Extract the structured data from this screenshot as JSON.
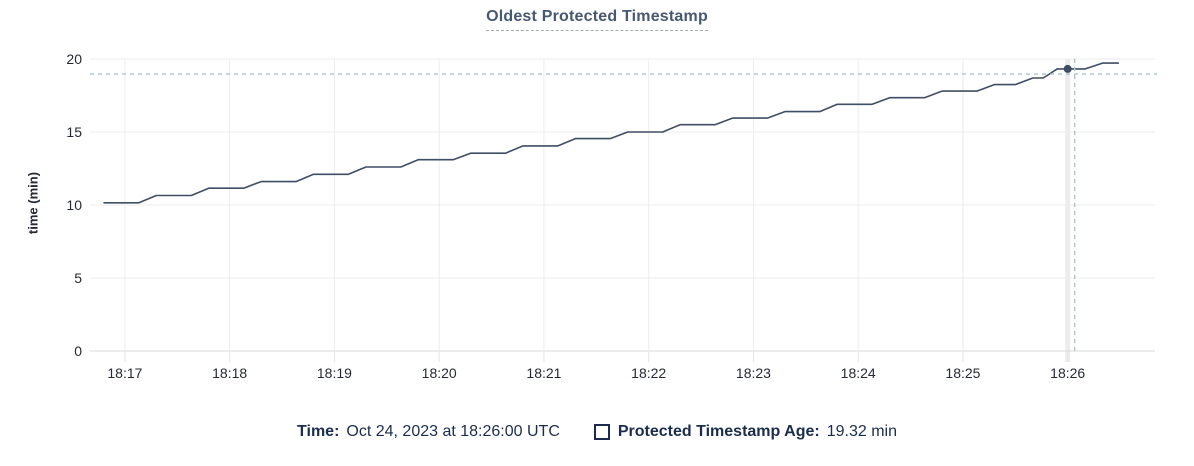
{
  "title": "Oldest Protected Timestamp",
  "y_axis_title": "time (min)",
  "legend": {
    "time_label": "Time:",
    "time_value": "Oct 24, 2023 at 18:26:00 UTC",
    "series_label": "Protected Timestamp Age:",
    "series_value": "19.32 min"
  },
  "colors": {
    "title": "#475872",
    "line": "#3f4e66",
    "dot": "#3f4e66",
    "crosshair": "#a9c4d2",
    "grid": "#ececec",
    "zero_line": "#d8d8d8",
    "tick_extension": "#e4e4e4",
    "highlight_band": "#ededed",
    "axis_label": "#242a35",
    "legend_text": "#1b2d4e",
    "background": "#ffffff"
  },
  "chart_data": {
    "type": "line",
    "title": "Oldest Protected Timestamp",
    "xlabel": "",
    "ylabel": "time (min)",
    "ylim": [
      0,
      20
    ],
    "y_ticks": [
      0,
      5,
      10,
      15,
      20
    ],
    "x_domain": [
      "18:16:40",
      "18:26:50"
    ],
    "x_ticks": [
      "18:17",
      "18:18",
      "18:19",
      "18:20",
      "18:21",
      "18:22",
      "18:23",
      "18:24",
      "18:25",
      "18:26"
    ],
    "grid": true,
    "legend_position": "bottom",
    "series": [
      {
        "name": "Protected Timestamp Age",
        "unit": "min",
        "points": [
          [
            "18:16:48",
            10.15
          ],
          [
            "18:17:08",
            10.15
          ],
          [
            "18:17:18",
            10.65
          ],
          [
            "18:17:38",
            10.65
          ],
          [
            "18:17:48",
            11.15
          ],
          [
            "18:18:08",
            11.15
          ],
          [
            "18:18:18",
            11.6
          ],
          [
            "18:18:38",
            11.6
          ],
          [
            "18:18:48",
            12.1
          ],
          [
            "18:19:08",
            12.1
          ],
          [
            "18:19:18",
            12.6
          ],
          [
            "18:19:38",
            12.6
          ],
          [
            "18:19:48",
            13.1
          ],
          [
            "18:20:08",
            13.1
          ],
          [
            "18:20:18",
            13.55
          ],
          [
            "18:20:38",
            13.55
          ],
          [
            "18:20:48",
            14.05
          ],
          [
            "18:21:08",
            14.05
          ],
          [
            "18:21:18",
            14.55
          ],
          [
            "18:21:38",
            14.55
          ],
          [
            "18:21:48",
            15.0
          ],
          [
            "18:22:08",
            15.0
          ],
          [
            "18:22:18",
            15.5
          ],
          [
            "18:22:38",
            15.5
          ],
          [
            "18:22:48",
            15.95
          ],
          [
            "18:23:08",
            15.95
          ],
          [
            "18:23:18",
            16.4
          ],
          [
            "18:23:38",
            16.4
          ],
          [
            "18:23:48",
            16.9
          ],
          [
            "18:24:08",
            16.9
          ],
          [
            "18:24:18",
            17.35
          ],
          [
            "18:24:38",
            17.35
          ],
          [
            "18:24:48",
            17.8
          ],
          [
            "18:25:08",
            17.8
          ],
          [
            "18:25:18",
            18.25
          ],
          [
            "18:25:30",
            18.25
          ],
          [
            "18:25:40",
            18.7
          ],
          [
            "18:25:46",
            18.7
          ],
          [
            "18:25:54",
            19.32
          ],
          [
            "18:26:10",
            19.32
          ],
          [
            "18:26:20",
            19.72
          ],
          [
            "18:26:29",
            19.72
          ]
        ]
      }
    ],
    "hover": {
      "time": "18:26:00",
      "value": 19.32,
      "crosshair_time": "18:26:04",
      "crosshair_value": 18.97
    }
  }
}
